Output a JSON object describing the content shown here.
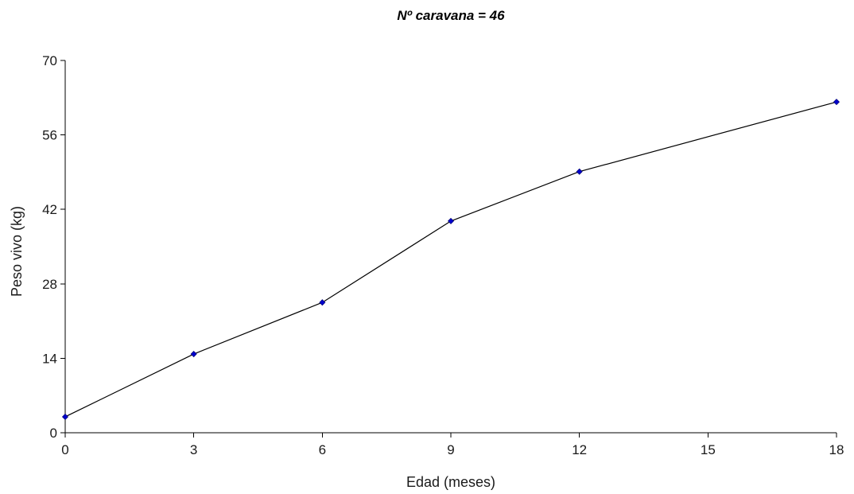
{
  "chart_data": {
    "type": "line",
    "title": "Nº caravana = 46",
    "xlabel": "Edad (meses)",
    "ylabel": "Peso vivo (kg)",
    "xlim": [
      0,
      18
    ],
    "ylim": [
      0,
      70
    ],
    "x_ticks": [
      0,
      3,
      6,
      9,
      12,
      15,
      18
    ],
    "y_ticks": [
      0,
      14,
      28,
      42,
      56,
      70
    ],
    "grid": false,
    "legend": "none",
    "series": [
      {
        "x": [
          0,
          3,
          6,
          9,
          12,
          18
        ],
        "y": [
          3,
          14.8,
          24.5,
          39.8,
          49.1,
          62.2
        ],
        "line_color": "#000000",
        "marker_color": "#0000cc"
      }
    ]
  }
}
